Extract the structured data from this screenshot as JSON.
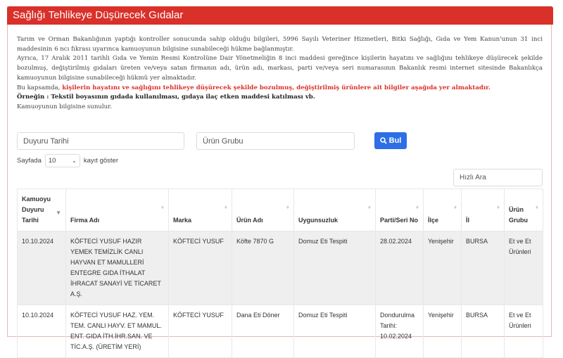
{
  "header": {
    "title": "Sağlığı Tehlikeye Düşürecek Gıdalar"
  },
  "intro": {
    "p1": "Tarım ve Orman Bakanlığının yaptığı kontroller sonucunda sahip olduğu bilgileri, 5996 Sayılı Veteriner Hizmetleri, Bitki Sağlığı, Gıda ve Yem Kanun'unun 31 inci maddesinin 6 ncı fıkrası uyarınca kamuoyunun bilgisine sunabileceği hükme bağlanmıştır.",
    "p2": "Ayrıca, 17 Aralık 2011 tarihli Gıda ve Yemin Resmi Kontrolüne Dair Yönetmeliğin 8 inci maddesi gereğince kişilerin hayatını ve sağlığını tehlikeye düşürecek şekilde bozulmuş, değiştirilmiş gıdaları üreten ve/veya satan firmanın adı, ürün adı, markası, parti ve/veya seri numarasının Bakanlık resmi internet sitesinde Bakanlıkça kamuoyunun bilgisine sunabileceği hükmü yer almaktadır.",
    "p3_prefix": "Bu kapsamda, ",
    "p3_red": "kişilerin hayatını ve sağlığını tehlikeye düşürecek şekilde bozulmuş, değiştirilmiş ürünlere ait bilgiler aşağıda yer almaktadır.",
    "p4": "Örneğin : Tekstil boyasının gıdada kullanılması, gıdaya ilaç etken maddesi katılması vb.",
    "p5": "Kamuoyunun bilgisine sunulur."
  },
  "filters": {
    "date_placeholder": "Duyuru Tarihi",
    "group_placeholder": "Ürün Grubu",
    "search_label": "Bul"
  },
  "length": {
    "prefix": "Sayfada",
    "value": "10",
    "suffix": "kayıt göster"
  },
  "quick_search": {
    "placeholder": "Hızlı Ara"
  },
  "table": {
    "columns": [
      "Kamuoyu Duyuru Tarihi",
      "Firma Adı",
      "Marka",
      "Ürün Adı",
      "Uygunsuzluk",
      "Parti/Seri No",
      "İlçe",
      "İl",
      "Ürün Grubu"
    ],
    "rows": [
      [
        "10.10.2024",
        "KÖFTECİ YUSUF HAZIR YEMEK TEMİZLİK CANLI HAYVAN ET MAMULLERİ ENTEGRE GIDA İTHALAT İHRACAT SANAYİ VE TİCARET A.Ş.",
        "KÖFTECİ YUSUF",
        "Köfte 7870 G",
        "Domuz Eti Tespiti",
        "28.02.2024",
        "Yenişehir",
        "BURSA",
        "Et ve Et Ürünleri"
      ],
      [
        "10.10.2024",
        "KÖFTECİ YUSUF HAZ. YEM. TEM. CANLI HAYV. ET MAMUL. ENT. GIDA İTH.İHR.SAN. VE TİC.A.Ş. (ÜRETİM YERİ)",
        "KÖFTECİ YUSUF",
        "Dana Eti Döner",
        "Domuz Eti Tespiti",
        "Dondurulma Tarihi: 10.02.2024",
        "Yenişehir",
        "BURSA",
        "Et ve Et Ürünleri"
      ]
    ]
  },
  "colors": {
    "brand": "#d9302a",
    "button": "#2e6ee6"
  }
}
